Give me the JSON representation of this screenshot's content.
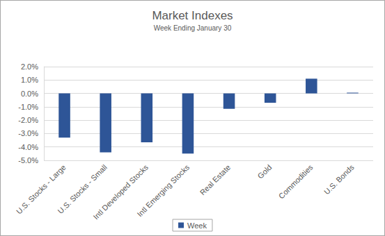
{
  "chart_data": {
    "type": "bar",
    "title": "Market Indexes",
    "subtitle": "Week Ending January 30",
    "categories": [
      "U.S. Stocks - Large",
      "U.S. Stocks - Small",
      "Intl Developed Stocks",
      "Intl Emerging Stocks",
      "Real Estate",
      "Gold",
      "Commodities",
      "U.S. Bonds"
    ],
    "series": [
      {
        "name": "Week",
        "color": "#2e5597",
        "values": [
          -3.3,
          -4.4,
          -3.65,
          -4.5,
          -1.15,
          -0.7,
          1.1,
          0.05
        ]
      }
    ],
    "ylim": [
      -5,
      2
    ],
    "yticks": [
      {
        "value": -5,
        "label": "-5.0%"
      },
      {
        "value": -4,
        "label": "-4.0%"
      },
      {
        "value": -3,
        "label": "-3.0%"
      },
      {
        "value": -2,
        "label": "-2.0%"
      },
      {
        "value": -1,
        "label": "-1.0%"
      },
      {
        "value": 0,
        "label": "0.0%"
      },
      {
        "value": 1,
        "label": "1.0%"
      },
      {
        "value": 2,
        "label": "2.0%"
      }
    ],
    "grid": true,
    "legend": "bottom"
  }
}
